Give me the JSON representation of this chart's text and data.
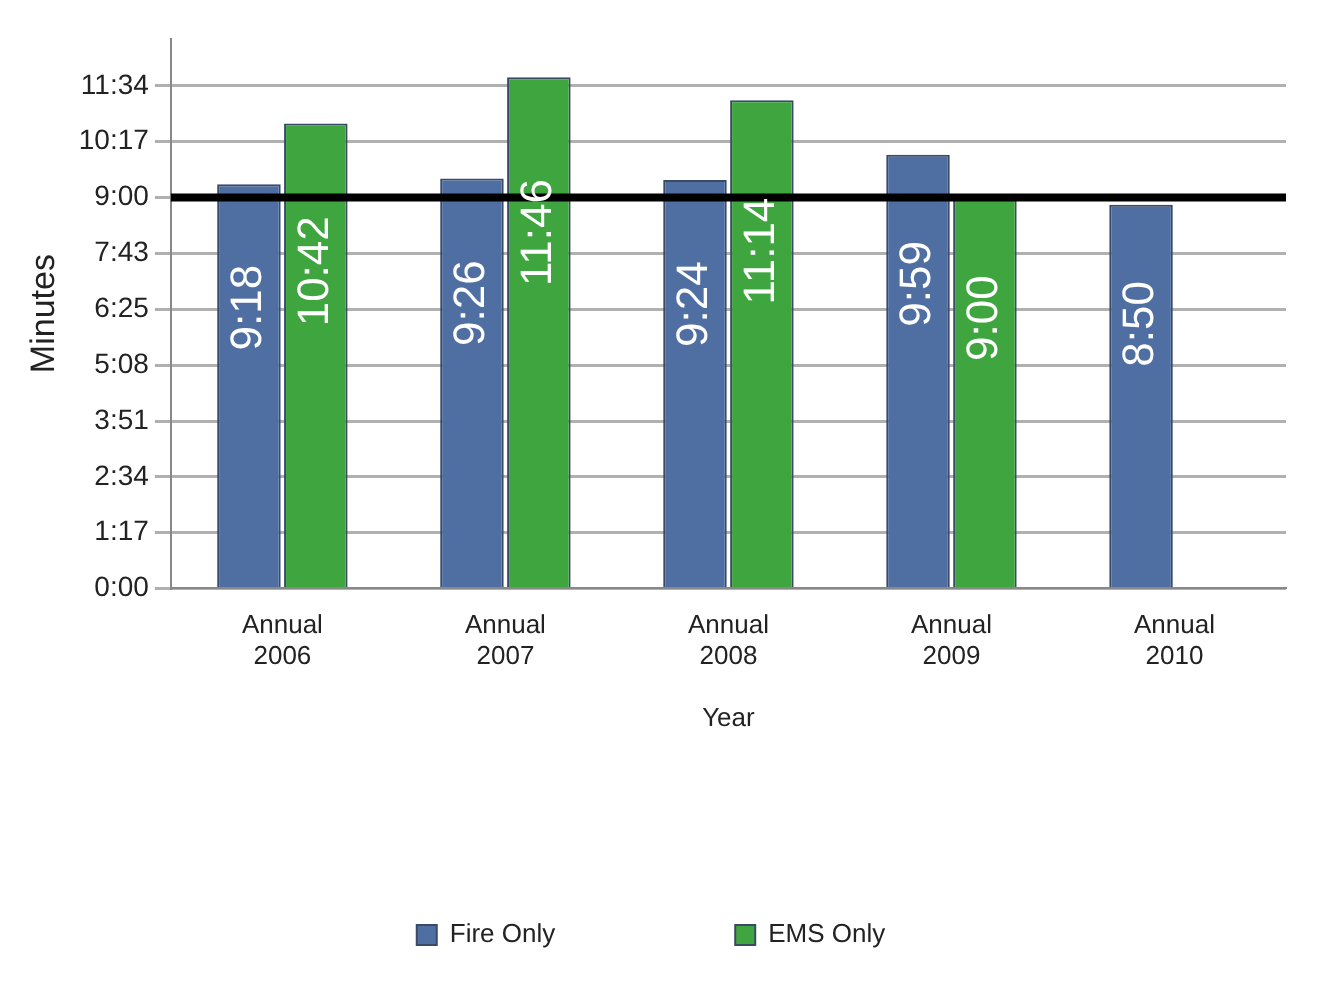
{
  "chart_data": {
    "type": "bar",
    "xlabel": "Year",
    "ylabel": "Minutes",
    "categories": [
      "Annual\n2006",
      "Annual\n2007",
      "Annual\n2008",
      "Annual\n2009",
      "Annual\n2010"
    ],
    "series": [
      {
        "name": "Fire Only",
        "color": "#4f6fa3",
        "values": [
          9.3,
          9.433,
          9.4,
          9.983,
          8.833
        ],
        "value_labels": [
          "9:18",
          "9:26",
          "9:24",
          "9:59",
          "8:50"
        ]
      },
      {
        "name": "EMS Only",
        "color": "#3fa63f",
        "values": [
          10.7,
          11.767,
          11.233,
          9,
          null
        ],
        "value_labels": [
          "10:42",
          "11:46",
          "11:14",
          "9:00",
          null
        ]
      }
    ],
    "ylim": [
      0,
      12.65
    ],
    "yticks": [
      {
        "value": 0,
        "label": "0:00"
      },
      {
        "value": 1.2833,
        "label": "1:17"
      },
      {
        "value": 2.5667,
        "label": "2:34"
      },
      {
        "value": 3.85,
        "label": "3:51"
      },
      {
        "value": 5.1333,
        "label": "5:08"
      },
      {
        "value": 6.4167,
        "label": "6:25"
      },
      {
        "value": 7.7167,
        "label": "7:43"
      },
      {
        "value": 9,
        "label": "9:00"
      },
      {
        "value": 10.2833,
        "label": "10:17"
      },
      {
        "value": 11.5667,
        "label": "11:34"
      }
    ],
    "ref_lines": [
      {
        "axis": "y",
        "value": 9,
        "color": "#000000"
      }
    ],
    "grid": "y",
    "legend": "bottom"
  }
}
